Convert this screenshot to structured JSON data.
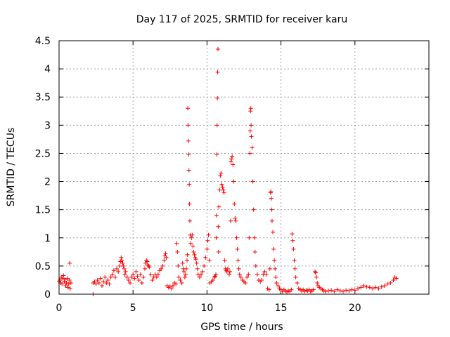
{
  "chart_data": {
    "type": "scatter",
    "title": "Day 117 of 2025, SRMTID for receiver karu",
    "xlabel": "GPS time / hours",
    "ylabel": "SRMTID / TECUs",
    "xlim": [
      0,
      25
    ],
    "ylim": [
      0,
      4.5
    ],
    "x_ticks": [
      0,
      5,
      10,
      15,
      20
    ],
    "y_ticks": [
      0,
      0.5,
      1,
      1.5,
      2,
      2.5,
      3,
      3.5,
      4,
      4.5
    ],
    "x_tick_labels": [
      "0",
      "5",
      "10",
      "15",
      "20"
    ],
    "y_tick_labels": [
      "0",
      "0.5",
      "1",
      "1.5",
      "2",
      "2.5",
      "3",
      "3.5",
      "4",
      "4.5"
    ],
    "grid": true,
    "marker": "plus",
    "series": [
      {
        "name": "SRMTID",
        "color": "#ff0000",
        "points": [
          [
            0.0,
            0.22
          ],
          [
            0.05,
            0.25
          ],
          [
            0.1,
            0.2
          ],
          [
            0.15,
            0.3
          ],
          [
            0.2,
            0.18
          ],
          [
            0.25,
            0.28
          ],
          [
            0.3,
            0.33
          ],
          [
            0.35,
            0.22
          ],
          [
            0.4,
            0.26
          ],
          [
            0.45,
            0.15
          ],
          [
            0.5,
            0.2
          ],
          [
            0.55,
            0.28
          ],
          [
            0.6,
            0.12
          ],
          [
            0.65,
            0.18
          ],
          [
            0.7,
            0.25
          ],
          [
            0.75,
            0.1
          ],
          [
            0.8,
            0.2
          ],
          [
            0.72,
            0.55
          ],
          [
            2.3,
            0.0
          ],
          [
            2.3,
            0.2
          ],
          [
            2.4,
            0.22
          ],
          [
            2.5,
            0.18
          ],
          [
            2.6,
            0.25
          ],
          [
            2.7,
            0.2
          ],
          [
            2.8,
            0.28
          ],
          [
            2.9,
            0.15
          ],
          [
            3.0,
            0.22
          ],
          [
            3.1,
            0.3
          ],
          [
            3.2,
            0.2
          ],
          [
            3.3,
            0.25
          ],
          [
            3.4,
            0.18
          ],
          [
            3.5,
            0.3
          ],
          [
            3.6,
            0.35
          ],
          [
            3.7,
            0.42
          ],
          [
            3.8,
            0.3
          ],
          [
            3.9,
            0.45
          ],
          [
            4.0,
            0.4
          ],
          [
            4.1,
            0.5
          ],
          [
            4.15,
            0.58
          ],
          [
            4.2,
            0.65
          ],
          [
            4.25,
            0.6
          ],
          [
            4.3,
            0.55
          ],
          [
            4.35,
            0.5
          ],
          [
            4.4,
            0.45
          ],
          [
            4.45,
            0.35
          ],
          [
            4.5,
            0.4
          ],
          [
            4.6,
            0.3
          ],
          [
            4.7,
            0.25
          ],
          [
            4.8,
            0.2
          ],
          [
            4.9,
            0.3
          ],
          [
            5.0,
            0.35
          ],
          [
            5.1,
            0.28
          ],
          [
            5.2,
            0.4
          ],
          [
            5.3,
            0.32
          ],
          [
            5.4,
            0.25
          ],
          [
            5.5,
            0.35
          ],
          [
            5.6,
            0.2
          ],
          [
            5.7,
            0.3
          ],
          [
            5.8,
            0.45
          ],
          [
            5.85,
            0.55
          ],
          [
            5.9,
            0.6
          ],
          [
            5.95,
            0.58
          ],
          [
            6.0,
            0.52
          ],
          [
            6.05,
            0.5
          ],
          [
            6.1,
            0.48
          ],
          [
            6.2,
            0.35
          ],
          [
            6.3,
            0.25
          ],
          [
            6.4,
            0.3
          ],
          [
            6.5,
            0.35
          ],
          [
            6.6,
            0.3
          ],
          [
            6.7,
            0.35
          ],
          [
            6.8,
            0.42
          ],
          [
            6.9,
            0.45
          ],
          [
            7.0,
            0.5
          ],
          [
            7.1,
            0.6
          ],
          [
            7.15,
            0.68
          ],
          [
            7.2,
            0.72
          ],
          [
            7.25,
            0.65
          ],
          [
            7.3,
            0.15
          ],
          [
            7.4,
            0.12
          ],
          [
            7.5,
            0.14
          ],
          [
            7.6,
            0.1
          ],
          [
            7.7,
            0.15
          ],
          [
            7.8,
            0.2
          ],
          [
            7.9,
            0.18
          ],
          [
            7.95,
            0.9
          ],
          [
            8.0,
            0.75
          ],
          [
            8.05,
            0.5
          ],
          [
            8.1,
            0.3
          ],
          [
            8.2,
            0.25
          ],
          [
            8.3,
            0.2
          ],
          [
            8.35,
            0.55
          ],
          [
            8.4,
            0.45
          ],
          [
            8.45,
            0.4
          ],
          [
            8.5,
            0.3
          ],
          [
            8.55,
            0.35
          ],
          [
            8.6,
            0.45
          ],
          [
            8.65,
            0.6
          ],
          [
            8.68,
            0.7
          ],
          [
            8.7,
            3.3
          ],
          [
            8.72,
            3.0
          ],
          [
            8.74,
            2.72
          ],
          [
            8.76,
            2.48
          ],
          [
            8.78,
            2.2
          ],
          [
            8.8,
            1.95
          ],
          [
            8.82,
            1.6
          ],
          [
            8.84,
            1.3
          ],
          [
            8.86,
            1.05
          ],
          [
            8.9,
            0.9
          ],
          [
            8.95,
            1.0
          ],
          [
            9.0,
            1.05
          ],
          [
            9.05,
            0.85
          ],
          [
            9.1,
            0.75
          ],
          [
            9.15,
            0.7
          ],
          [
            9.2,
            0.65
          ],
          [
            9.25,
            0.62
          ],
          [
            9.3,
            0.55
          ],
          [
            9.35,
            0.45
          ],
          [
            9.4,
            0.35
          ],
          [
            9.5,
            0.3
          ],
          [
            9.6,
            0.35
          ],
          [
            9.7,
            0.4
          ],
          [
            9.8,
            0.5
          ],
          [
            9.9,
            0.65
          ],
          [
            10.0,
            0.8
          ],
          [
            10.05,
            0.95
          ],
          [
            10.1,
            1.05
          ],
          [
            10.15,
            0.6
          ],
          [
            10.2,
            0.2
          ],
          [
            10.3,
            0.22
          ],
          [
            10.4,
            0.25
          ],
          [
            10.5,
            0.3
          ],
          [
            10.55,
            0.32
          ],
          [
            10.6,
            0.35
          ],
          [
            10.62,
            1.0
          ],
          [
            10.64,
            1.4
          ],
          [
            10.66,
            2.48
          ],
          [
            10.68,
            3.0
          ],
          [
            10.7,
            3.48
          ],
          [
            10.72,
            3.94
          ],
          [
            10.74,
            4.35
          ],
          [
            10.76,
            1.2
          ],
          [
            10.78,
            0.75
          ],
          [
            10.8,
            1.55
          ],
          [
            10.85,
            1.85
          ],
          [
            10.9,
            2.1
          ],
          [
            10.95,
            2.15
          ],
          [
            11.0,
            1.95
          ],
          [
            11.05,
            1.9
          ],
          [
            11.1,
            1.85
          ],
          [
            11.15,
            1.8
          ],
          [
            11.2,
            0.6
          ],
          [
            11.25,
            0.45
          ],
          [
            11.3,
            0.42
          ],
          [
            11.35,
            0.4
          ],
          [
            11.4,
            0.45
          ],
          [
            11.5,
            0.35
          ],
          [
            11.55,
            0.4
          ],
          [
            11.6,
            1.3
          ],
          [
            11.62,
            2.35
          ],
          [
            11.65,
            2.4
          ],
          [
            11.7,
            2.45
          ],
          [
            11.75,
            2.3
          ],
          [
            11.8,
            2.0
          ],
          [
            11.85,
            1.6
          ],
          [
            11.9,
            1.35
          ],
          [
            11.95,
            1.3
          ],
          [
            12.0,
            1.0
          ],
          [
            12.05,
            0.8
          ],
          [
            12.1,
            0.6
          ],
          [
            12.15,
            0.45
          ],
          [
            12.2,
            0.35
          ],
          [
            12.3,
            0.3
          ],
          [
            12.4,
            0.25
          ],
          [
            12.5,
            0.22
          ],
          [
            12.6,
            0.2
          ],
          [
            12.7,
            0.3
          ],
          [
            12.8,
            0.35
          ],
          [
            12.85,
            1.0
          ],
          [
            12.9,
            2.5
          ],
          [
            12.92,
            2.9
          ],
          [
            12.94,
            3.25
          ],
          [
            12.96,
            3.3
          ],
          [
            12.98,
            3.0
          ],
          [
            13.0,
            2.8
          ],
          [
            13.05,
            2.6
          ],
          [
            13.1,
            2.0
          ],
          [
            13.15,
            1.5
          ],
          [
            13.2,
            1.0
          ],
          [
            13.25,
            0.75
          ],
          [
            13.3,
            0.5
          ],
          [
            13.4,
            0.35
          ],
          [
            13.5,
            0.25
          ],
          [
            13.6,
            0.22
          ],
          [
            13.7,
            0.25
          ],
          [
            13.8,
            0.35
          ],
          [
            13.9,
            0.4
          ],
          [
            14.0,
            0.35
          ],
          [
            14.1,
            0.1
          ],
          [
            14.2,
            0.08
          ],
          [
            14.25,
            0.45
          ],
          [
            14.3,
            1.8
          ],
          [
            14.32,
            1.82
          ],
          [
            14.35,
            1.7
          ],
          [
            14.38,
            1.5
          ],
          [
            14.4,
            1.3
          ],
          [
            14.45,
            1.1
          ],
          [
            14.5,
            0.8
          ],
          [
            14.55,
            0.6
          ],
          [
            14.6,
            0.45
          ],
          [
            14.65,
            0.3
          ],
          [
            14.7,
            0.2
          ],
          [
            14.8,
            0.15
          ],
          [
            14.9,
            0.1
          ],
          [
            15.0,
            0.08
          ],
          [
            15.1,
            0.05
          ],
          [
            15.2,
            0.08
          ],
          [
            15.3,
            0.06
          ],
          [
            15.4,
            0.04
          ],
          [
            15.5,
            0.06
          ],
          [
            15.6,
            0.05
          ],
          [
            15.7,
            0.08
          ],
          [
            15.75,
            1.07
          ],
          [
            15.8,
            0.95
          ],
          [
            15.85,
            0.8
          ],
          [
            15.9,
            0.6
          ],
          [
            15.95,
            0.45
          ],
          [
            16.0,
            0.3
          ],
          [
            16.1,
            0.2
          ],
          [
            16.2,
            0.1
          ],
          [
            16.3,
            0.08
          ],
          [
            16.4,
            0.06
          ],
          [
            16.5,
            0.08
          ],
          [
            16.6,
            0.05
          ],
          [
            16.7,
            0.07
          ],
          [
            16.8,
            0.06
          ],
          [
            16.9,
            0.08
          ],
          [
            17.0,
            0.05
          ],
          [
            17.1,
            0.06
          ],
          [
            17.2,
            0.08
          ],
          [
            17.3,
            0.4
          ],
          [
            17.35,
            0.38
          ],
          [
            17.4,
            0.3
          ],
          [
            17.45,
            0.2
          ],
          [
            17.5,
            0.15
          ],
          [
            17.6,
            0.12
          ],
          [
            17.7,
            0.1
          ],
          [
            17.8,
            0.08
          ],
          [
            17.9,
            0.06
          ],
          [
            18.0,
            0.05
          ],
          [
            18.2,
            0.06
          ],
          [
            18.4,
            0.07
          ],
          [
            18.6,
            0.05
          ],
          [
            18.8,
            0.08
          ],
          [
            19.0,
            0.06
          ],
          [
            19.2,
            0.05
          ],
          [
            19.4,
            0.07
          ],
          [
            19.6,
            0.06
          ],
          [
            19.8,
            0.08
          ],
          [
            20.0,
            0.07
          ],
          [
            20.2,
            0.1
          ],
          [
            20.4,
            0.12
          ],
          [
            20.6,
            0.15
          ],
          [
            20.8,
            0.13
          ],
          [
            21.0,
            0.12
          ],
          [
            21.2,
            0.1
          ],
          [
            21.4,
            0.12
          ],
          [
            21.6,
            0.1
          ],
          [
            21.8,
            0.13
          ],
          [
            22.0,
            0.15
          ],
          [
            22.2,
            0.18
          ],
          [
            22.4,
            0.2
          ],
          [
            22.6,
            0.25
          ],
          [
            22.7,
            0.3
          ],
          [
            22.8,
            0.28
          ]
        ]
      }
    ]
  }
}
